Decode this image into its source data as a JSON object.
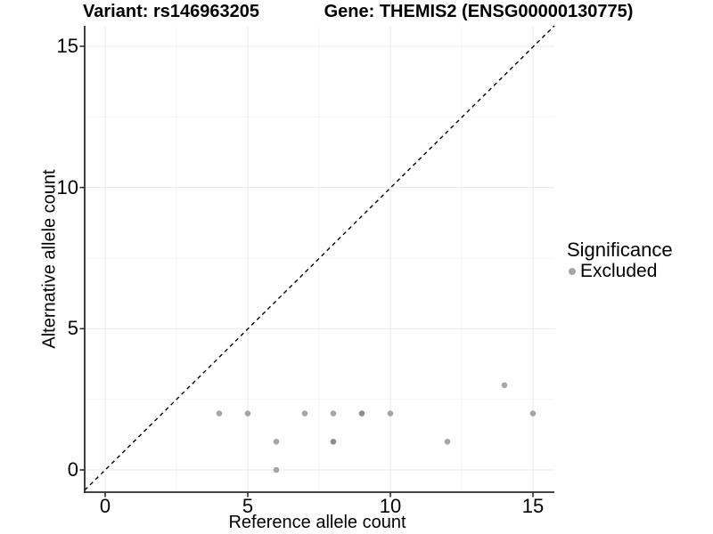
{
  "figure": {
    "title_left": "Variant: rs146963205",
    "title_right": "Gene: THEMIS2 (ENSG00000130775)"
  },
  "chart_data": {
    "type": "scatter",
    "title_left": "Variant: rs146963205",
    "title_right": "Gene: THEMIS2 (ENSG00000130775)",
    "xlabel": "Reference allele count",
    "ylabel": "Alternative allele count",
    "xlim": [
      -0.75,
      15.75
    ],
    "ylim": [
      -0.75,
      15.75
    ],
    "x_major_ticks": [
      0,
      5,
      10,
      15
    ],
    "y_major_ticks": [
      0,
      5,
      10,
      15
    ],
    "x_minor_ticks": [
      2.5,
      7.5,
      12.5
    ],
    "y_minor_ticks": [
      2.5,
      7.5,
      12.5
    ],
    "grid": "major and minor, light gray, white background",
    "reference_line": {
      "equation": "y = x",
      "style": "dashed",
      "color": "#000000"
    },
    "series": [
      {
        "name": "Excluded",
        "marker_color": "#a6a6a6",
        "marker_color_dark": "#8d8d8d",
        "points": [
          {
            "x": 4,
            "y": 2,
            "shade": "normal"
          },
          {
            "x": 5,
            "y": 2,
            "shade": "normal"
          },
          {
            "x": 6,
            "y": 0,
            "shade": "normal"
          },
          {
            "x": 6,
            "y": 1,
            "shade": "normal"
          },
          {
            "x": 7,
            "y": 2,
            "shade": "normal"
          },
          {
            "x": 8,
            "y": 1,
            "shade": "dark"
          },
          {
            "x": 8,
            "y": 2,
            "shade": "normal"
          },
          {
            "x": 9,
            "y": 2,
            "shade": "dark"
          },
          {
            "x": 10,
            "y": 2,
            "shade": "normal"
          },
          {
            "x": 12,
            "y": 1,
            "shade": "normal"
          },
          {
            "x": 14,
            "y": 3,
            "shade": "normal"
          },
          {
            "x": 15,
            "y": 2,
            "shade": "normal"
          }
        ]
      }
    ],
    "legend": {
      "title": "Significance",
      "position": "right",
      "items": [
        {
          "label": "Excluded",
          "marker_color": "#a6a6a6"
        }
      ]
    }
  },
  "colors": {
    "background": "#ffffff",
    "grid_major": "#e9e9e9",
    "grid_minor": "#f4f4f4",
    "axis_line": "#2b2b2b",
    "tick_mark": "#2b2b2b",
    "text": "#000000",
    "point": "#a6a6a6",
    "point_dark": "#8d8d8d",
    "reference_line": "#000000"
  }
}
